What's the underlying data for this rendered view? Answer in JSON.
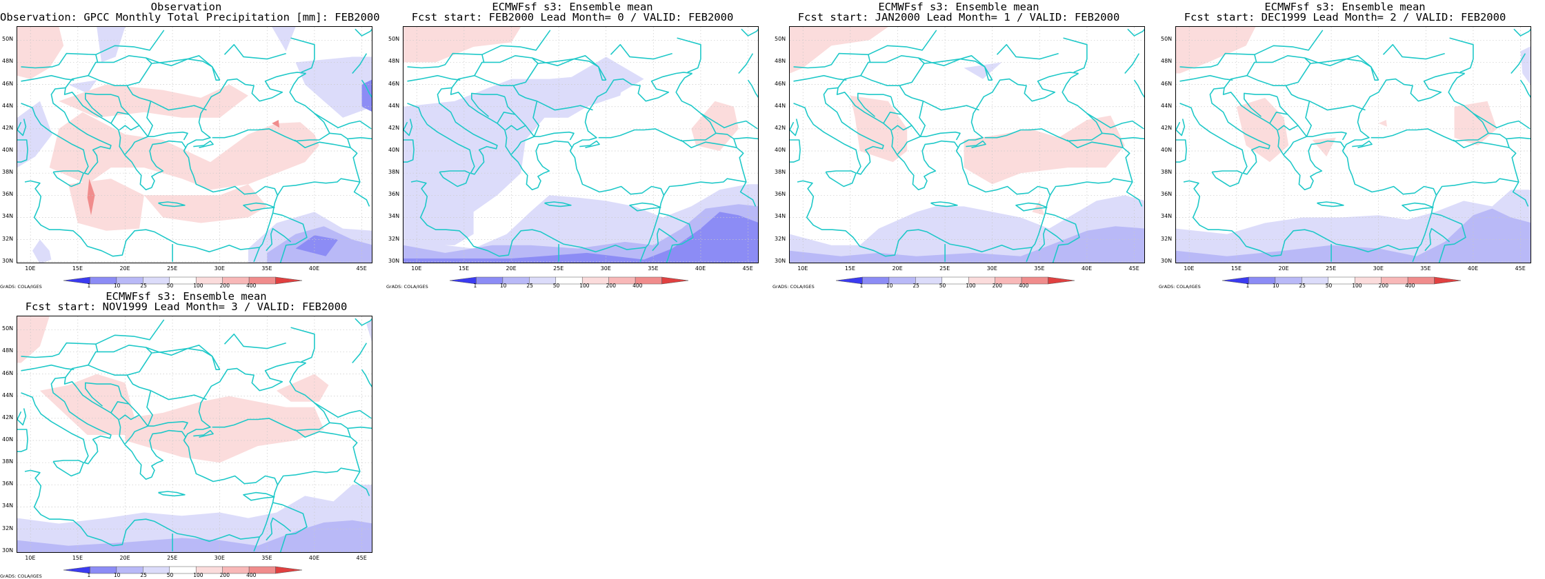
{
  "panels": [
    {
      "title1": "Observation",
      "title2": "Observation: GPCC Monthly Total Precipitation [mm]: FEB2000"
    },
    {
      "title1": "ECMWFsf s3: Ensemble mean",
      "title2": "Fcst start: FEB2000  Lead Month= 0 / VALID: FEB2000"
    },
    {
      "title1": "ECMWFsf s3: Ensemble mean",
      "title2": "Fcst start: JAN2000  Lead Month= 1 / VALID: FEB2000"
    },
    {
      "title1": "ECMWFsf s3: Ensemble mean",
      "title2": "Fcst start: DEC1999  Lead Month= 2 / VALID: FEB2000"
    },
    {
      "title1": "ECMWFsf s3: Ensemble mean",
      "title2": "Fcst start: NOV1999  Lead Month= 3 / VALID: FEB2000"
    }
  ],
  "axes": {
    "lat_labels": [
      "50N",
      "48N",
      "46N",
      "44N",
      "42N",
      "40N",
      "38N",
      "36N",
      "34N",
      "32N",
      "30N"
    ],
    "lon_labels": [
      "10E",
      "15E",
      "20E",
      "25E",
      "30E",
      "35E",
      "40E",
      "45E"
    ]
  },
  "colorbar": {
    "levels": [
      "1",
      "10",
      "25",
      "50",
      "100",
      "200",
      "400"
    ],
    "colors": [
      "#3b3bf0",
      "#8c8cf5",
      "#b9b9f7",
      "#dcdcfa",
      "#ffffff",
      "#fbdcdc",
      "#f8b8b8",
      "#f08c8c",
      "#e04040"
    ]
  },
  "footer": {
    "grads": "GrADS: COLA/IGES"
  },
  "colors": {
    "coast": "#1ec8c8",
    "blue_light": "#dcdcfa",
    "blue_mid": "#b9b9f7",
    "blue_dark": "#8c8cf5",
    "red_light": "#fbdcdc",
    "red_mid": "#f08c8c"
  }
}
